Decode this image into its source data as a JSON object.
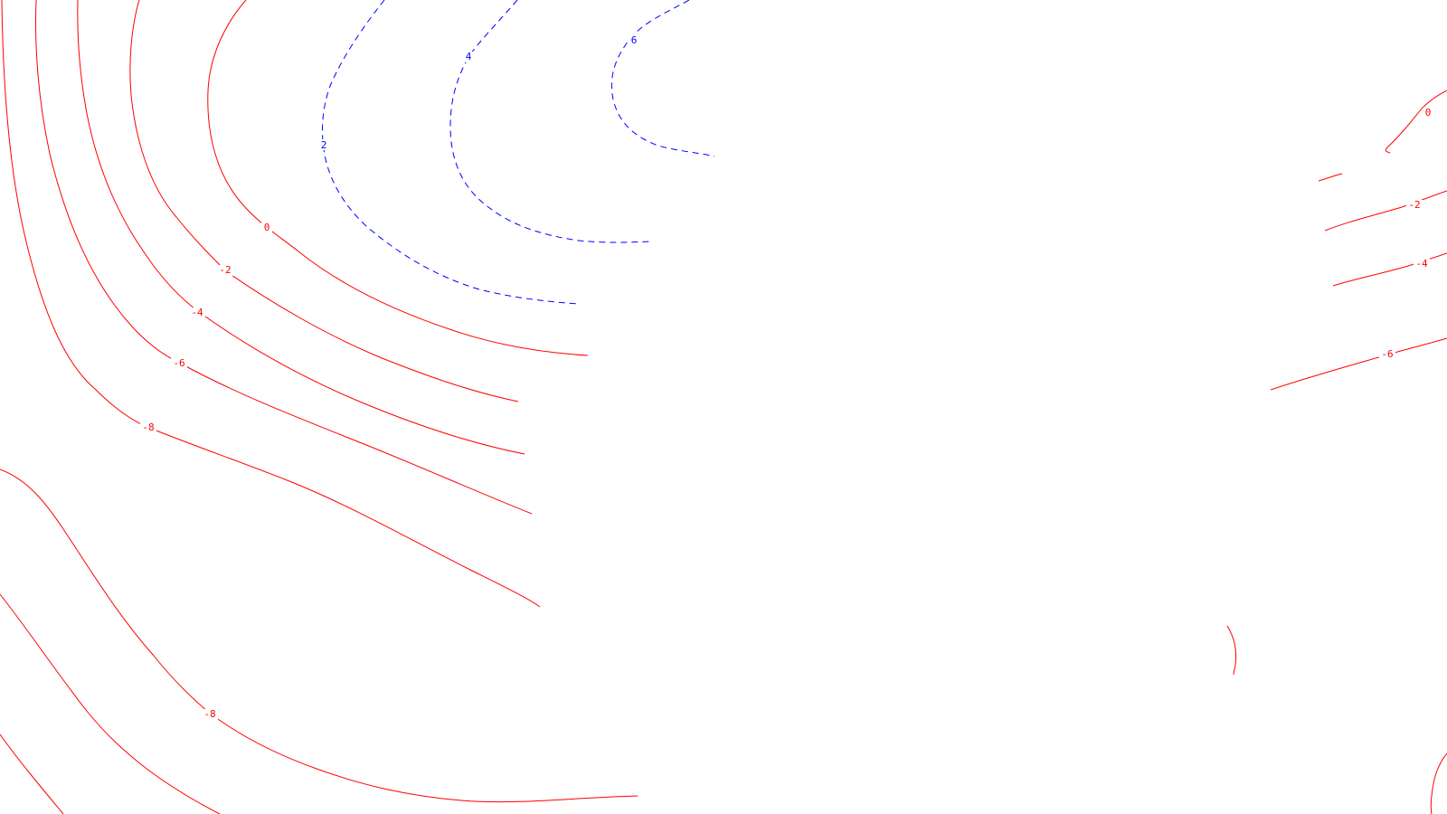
{
  "map": {
    "colors": {
      "negative": "#ff0000",
      "positive": "#0000ff",
      "background": "#ffffff"
    },
    "contours": [
      {
        "id": "pos6",
        "level": "6",
        "sign": "positive",
        "label": "6"
      },
      {
        "id": "pos4",
        "level": "4",
        "sign": "positive",
        "label": "4"
      },
      {
        "id": "pos2",
        "level": "2",
        "sign": "positive",
        "label": "2"
      },
      {
        "id": "zero-left",
        "level": "0",
        "sign": "negative",
        "label": "0"
      },
      {
        "id": "neg2-left",
        "level": "-2",
        "sign": "negative",
        "label": "-2"
      },
      {
        "id": "neg4-left",
        "level": "-4",
        "sign": "negative",
        "label": "-4"
      },
      {
        "id": "neg6-left",
        "level": "-6",
        "sign": "negative",
        "label": "-6"
      },
      {
        "id": "neg8-left",
        "level": "-8",
        "sign": "negative",
        "label": "-8"
      },
      {
        "id": "neg8-bottom",
        "level": "-8",
        "sign": "negative",
        "label": "-8"
      },
      {
        "id": "neg-bottom-left",
        "level": "",
        "sign": "negative",
        "label": ""
      },
      {
        "id": "zero-right",
        "level": "0",
        "sign": "negative",
        "label": "0"
      },
      {
        "id": "zero-right-stub",
        "level": "",
        "sign": "negative",
        "label": ""
      },
      {
        "id": "neg2-right",
        "level": "-2",
        "sign": "negative",
        "label": "-2"
      },
      {
        "id": "neg4-right",
        "level": "-4",
        "sign": "negative",
        "label": "-4"
      },
      {
        "id": "neg6-right",
        "level": "-6",
        "sign": "negative",
        "label": "-6"
      },
      {
        "id": "arc-right",
        "level": "",
        "sign": "negative",
        "label": ""
      },
      {
        "id": "arc-corner",
        "level": "",
        "sign": "negative",
        "label": ""
      }
    ]
  }
}
